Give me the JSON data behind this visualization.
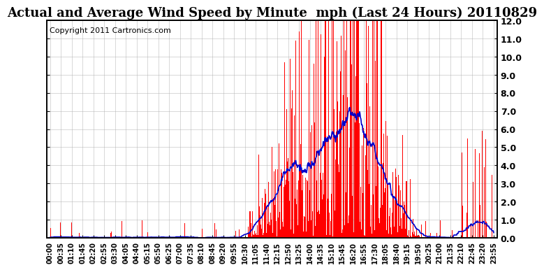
{
  "title": "Actual and Average Wind Speed by Minute  mph (Last 24 Hours) 20110829",
  "copyright_text": "Copyright 2011 Cartronics.com",
  "ylim": [
    0.0,
    12.0
  ],
  "yticks": [
    0.0,
    1.0,
    2.0,
    3.0,
    4.0,
    5.0,
    6.0,
    7.0,
    8.0,
    9.0,
    10.0,
    11.0,
    12.0
  ],
  "xtick_labels": [
    "00:00",
    "00:35",
    "01:10",
    "01:45",
    "02:20",
    "02:55",
    "03:30",
    "04:05",
    "04:40",
    "05:15",
    "05:50",
    "06:25",
    "07:00",
    "07:35",
    "08:10",
    "08:45",
    "09:20",
    "09:55",
    "10:30",
    "11:05",
    "11:40",
    "12:15",
    "12:50",
    "13:25",
    "14:00",
    "14:35",
    "15:10",
    "15:45",
    "16:20",
    "16:55",
    "17:30",
    "18:05",
    "18:40",
    "19:15",
    "19:50",
    "20:25",
    "21:00",
    "21:35",
    "22:10",
    "22:45",
    "23:20",
    "23:55"
  ],
  "bar_color": "#ff0000",
  "line_color": "#0000cc",
  "background_color": "#ffffff",
  "grid_color": "#aaaaaa",
  "title_fontsize": 13,
  "copyright_fontsize": 8,
  "tick_fontsize": 7
}
